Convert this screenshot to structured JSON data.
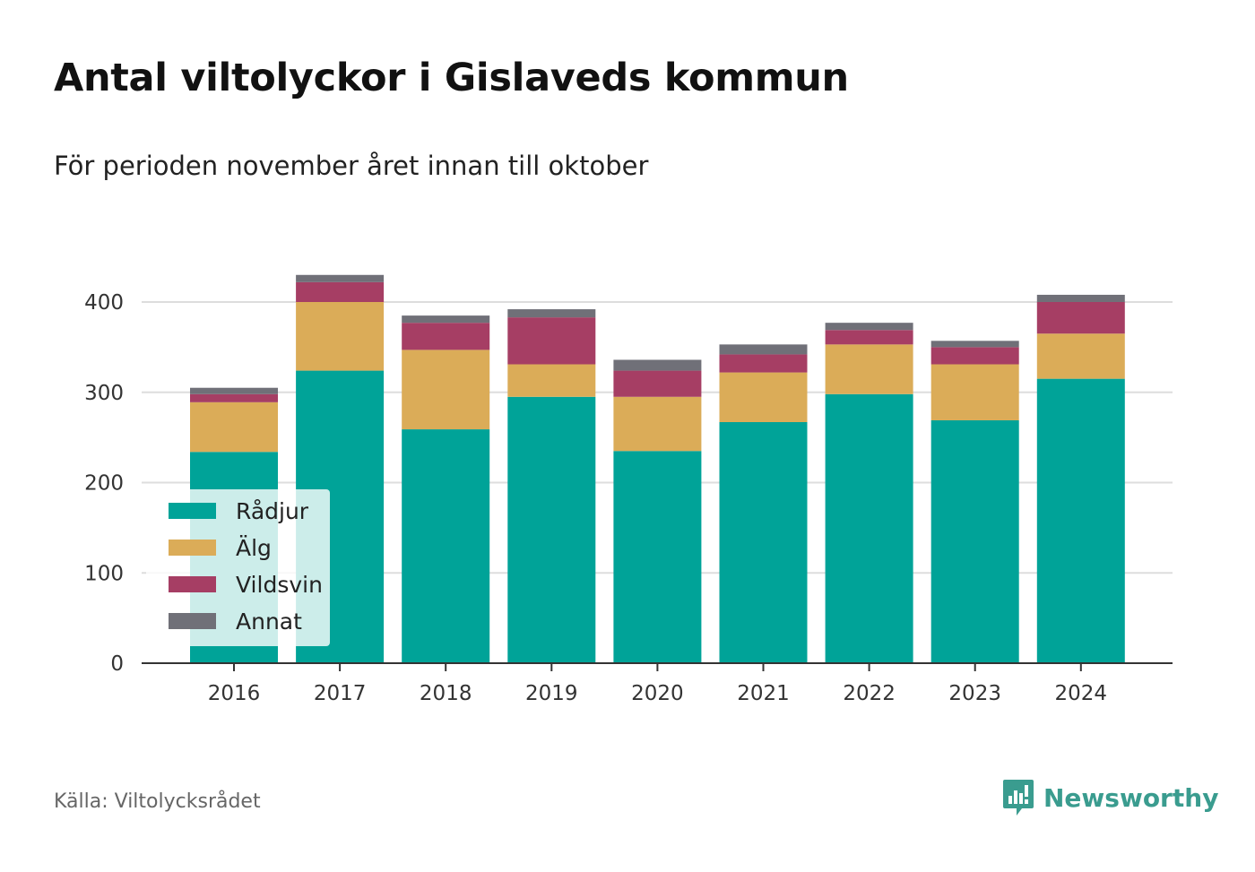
{
  "title": "Antal viltolyckor i Gislaveds kommun",
  "subtitle": "För perioden november året innan till oktober",
  "source": "Källa: Viltolycksrådet",
  "logo": {
    "text": "Newsworthy",
    "icon": "newsworthy-logo-icon",
    "color": "#3a9c8f"
  },
  "chart_data": {
    "type": "bar",
    "stacked": true,
    "title": "Antal viltolyckor i Gislaveds kommun",
    "subtitle": "För perioden november året innan till oktober",
    "categories": [
      "2016",
      "2017",
      "2018",
      "2019",
      "2020",
      "2021",
      "2022",
      "2023",
      "2024"
    ],
    "series": [
      {
        "name": "Rådjur",
        "color": "#00a398",
        "values": [
          234,
          324,
          259,
          295,
          235,
          267,
          298,
          269,
          315
        ]
      },
      {
        "name": "Älg",
        "color": "#dbac58",
        "values": [
          55,
          76,
          88,
          36,
          60,
          55,
          55,
          62,
          50
        ]
      },
      {
        "name": "Vildsvin",
        "color": "#a63e64",
        "values": [
          9,
          22,
          30,
          52,
          29,
          20,
          16,
          19,
          35
        ]
      },
      {
        "name": "Annat",
        "color": "#707078",
        "values": [
          7,
          8,
          8,
          9,
          12,
          11,
          8,
          7,
          8
        ]
      }
    ],
    "yticks": [
      0,
      100,
      200,
      300,
      400
    ],
    "ylim": [
      0,
      430
    ],
    "grid": true,
    "legend_position": "bottom-left"
  }
}
